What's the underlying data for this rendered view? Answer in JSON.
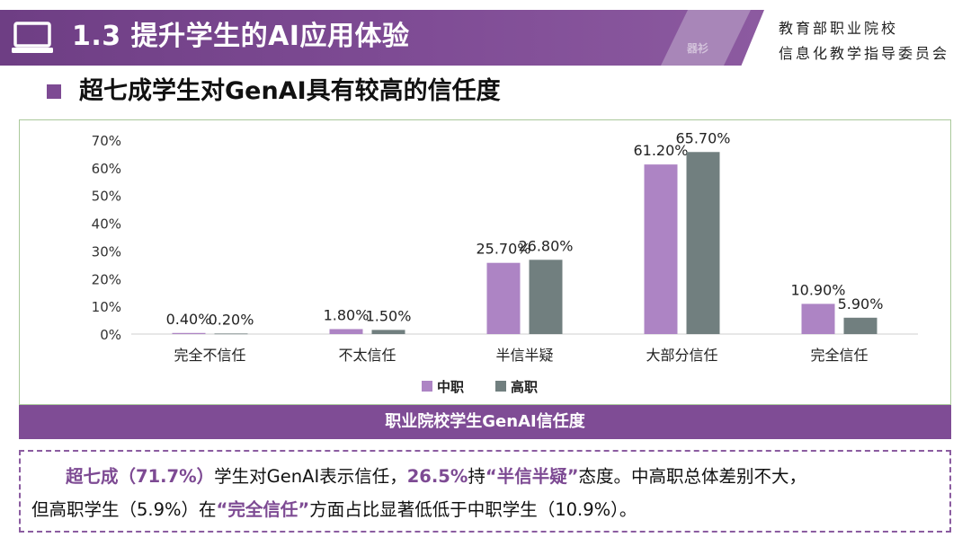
{
  "header": {
    "title": "1.3 提升学生的AI应用体验",
    "watermark": "器衫",
    "org_line1": "教育部职业院校",
    "org_line2": "信息化教学指导委员会"
  },
  "subtitle": "超七成学生对GenAI具有较高的信任度",
  "caption": "职业院校学生GenAI信任度",
  "summary": {
    "s1": "超七成（71.7%）",
    "s2": "学生对GenAI表示信任，",
    "s3": "26.5%",
    "s4": "持",
    "s5": "“半信半疑”",
    "s6": "态度。中高职总体差别不大，",
    "s7": "但高职学生（5.9%）在",
    "s8": "“完全信任”",
    "s9": "方面占比显著低低于中职学生（10.9%）。"
  },
  "colors": {
    "series1": "#ad84c4",
    "series2": "#717f7f",
    "accent": "#7f4c95"
  },
  "chart_data": {
    "type": "bar",
    "categories": [
      "完全不信任",
      "不太信任",
      "半信半疑",
      "大部分信任",
      "完全信任"
    ],
    "series": [
      {
        "name": "中职",
        "values": [
          0.4,
          1.8,
          25.7,
          61.2,
          10.9
        ]
      },
      {
        "name": "高职",
        "values": [
          0.2,
          1.5,
          26.8,
          65.7,
          5.9
        ]
      }
    ],
    "data_labels": [
      [
        "0.40%",
        "1.80%",
        "25.70%",
        "61.20%",
        "10.90%"
      ],
      [
        "0.20%",
        "1.50%",
        "26.80%",
        "65.70%",
        "5.90%"
      ]
    ],
    "yticks": [
      "0%",
      "10%",
      "20%",
      "30%",
      "40%",
      "50%",
      "60%",
      "70%"
    ],
    "ylim": [
      0,
      70
    ],
    "grid": false,
    "legend": "bottom-center"
  }
}
